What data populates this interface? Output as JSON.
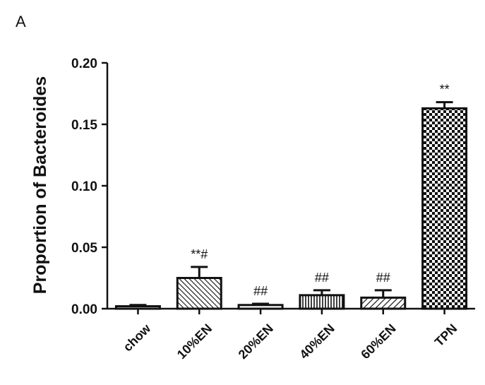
{
  "panel_label": "A",
  "chart_data": {
    "type": "bar",
    "title": "",
    "xlabel": "",
    "ylabel": "Proportion of Bacteroides",
    "ylim": [
      0,
      0.2
    ],
    "yticks": [
      "0.00",
      "0.05",
      "0.10",
      "0.15",
      "0.20"
    ],
    "grid": false,
    "categories": [
      "chow",
      "10%EN",
      "20%EN",
      "40%EN",
      "60%EN",
      "TPN"
    ],
    "values": [
      0.002,
      0.025,
      0.003,
      0.011,
      0.009,
      0.163
    ],
    "errors": [
      0.001,
      0.009,
      0.001,
      0.004,
      0.006,
      0.005
    ],
    "annotations": [
      "",
      "**#",
      "##",
      "##",
      "##",
      "**"
    ],
    "patterns": [
      "solid-white",
      "diagonal-dense",
      "solid-white",
      "vertical-lines",
      "diagonal-wide",
      "checkerboard"
    ],
    "colors": {
      "bar_stroke": "#111111",
      "fill": "#ffffff",
      "axis": "#111111"
    }
  }
}
